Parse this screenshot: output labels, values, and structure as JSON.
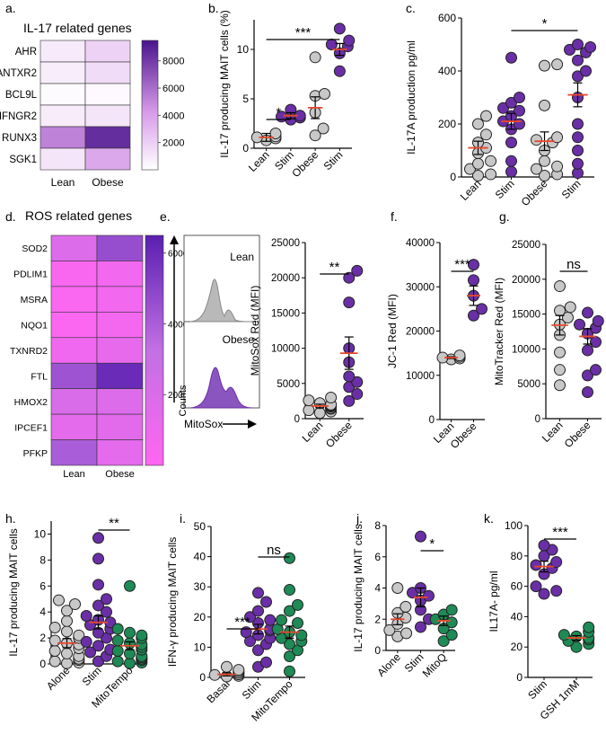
{
  "chart_data": [
    {
      "panel": "a.",
      "type": "heatmap",
      "title": "IL-17 related genes",
      "rows": [
        "AHR",
        "ANTXR2",
        "BCL9L",
        "IFNGR2",
        "RUNX3",
        "SGK1"
      ],
      "columns": [
        "Lean",
        "Obese"
      ],
      "values": [
        [
          900,
          1900
        ],
        [
          700,
          1500
        ],
        [
          150,
          250
        ],
        [
          800,
          1100
        ],
        [
          5200,
          8500
        ],
        [
          1100,
          3700
        ]
      ],
      "color_ticks": [
        "2000",
        "4000",
        "6000",
        "8000"
      ],
      "color_range": [
        0,
        9500
      ]
    },
    {
      "panel": "b.",
      "type": "scatter",
      "ylabel": "IL-17 producing MAIT cells (%)",
      "categories": [
        "Lean",
        "Stim",
        "Obese",
        "Stim"
      ],
      "ylim": [
        0,
        13
      ],
      "yticks": [
        "0",
        "5",
        "10"
      ],
      "points": [
        [
          1.0,
          1.5,
          0.8,
          1.2,
          1.1
        ],
        [
          3.1,
          3.3,
          3.2,
          2.9,
          3.9
        ],
        [
          5.3,
          5.5,
          2.0,
          1.3,
          9.2,
          3.6
        ],
        [
          12.1,
          10.5,
          10.3,
          10.9,
          9.6,
          7.8
        ]
      ],
      "colors": [
        "#c8c8c8",
        "#6a2fa6",
        "#c8c8c8",
        "#6a2fa6"
      ],
      "means": [
        1.1,
        3.3,
        4.1,
        10.0
      ],
      "sems": [
        0.4,
        0.3,
        1.1,
        0.6
      ],
      "significance": [
        {
          "from": 0,
          "to": 1,
          "label": "*"
        },
        {
          "from": 0,
          "to": 3,
          "label": "***"
        }
      ]
    },
    {
      "panel": "c.",
      "type": "scatter",
      "ylabel": "IL-17A production pg/ml",
      "categories": [
        "Lean",
        "Stim",
        "Obese",
        "Stim"
      ],
      "ylim": [
        0,
        600
      ],
      "yticks": [
        "0",
        "200",
        "400",
        "600"
      ],
      "points": [
        [
          230,
          200,
          160,
          130,
          110,
          90,
          60,
          50,
          30,
          10,
          5
        ],
        [
          450,
          300,
          280,
          260,
          250,
          230,
          210,
          200,
          180,
          130,
          60,
          20
        ],
        [
          425,
          420,
          270,
          150,
          140,
          130,
          100,
          60,
          30,
          10,
          5,
          40
        ],
        [
          500,
          490,
          480,
          470,
          440,
          400,
          380,
          300,
          200,
          150,
          100,
          50,
          15
        ]
      ],
      "colors": [
        "#c8c8c8",
        "#6a2fa6",
        "#c8c8c8",
        "#6a2fa6"
      ],
      "means": [
        110,
        210,
        135,
        310
      ],
      "sems": [
        25,
        30,
        35,
        45
      ],
      "significance": [
        {
          "from": 1,
          "to": 3,
          "label": "*"
        }
      ]
    },
    {
      "panel": "d.",
      "type": "heatmap",
      "title": "ROS related genes",
      "rows": [
        "SOD2",
        "PDLIM1",
        "MSRA",
        "NQO1",
        "TXNRD2",
        "FTL",
        "HMOX2",
        "IPCEF1",
        "PFKP"
      ],
      "columns": [
        "Lean",
        "Obese"
      ],
      "values": [
        [
          1800,
          4600
        ],
        [
          300,
          700
        ],
        [
          250,
          700
        ],
        [
          200,
          600
        ],
        [
          800,
          1300
        ],
        [
          4400,
          6000
        ],
        [
          2100,
          1800
        ],
        [
          1500,
          1600
        ],
        [
          4000,
          1500
        ]
      ],
      "color_ticks": [
        "2000",
        "4000",
        "6000"
      ],
      "color_range": [
        0,
        6500
      ]
    },
    {
      "panel": "e.",
      "type": "histogram",
      "labels": {
        "top": "Lean",
        "bottom": "Obese",
        "ylabel": "Counts",
        "xlabel": "MitoSox"
      }
    },
    {
      "panel": "e.",
      "type": "scatter",
      "ylabel": "MitoSox Red (MFI)",
      "categories": [
        "Lean",
        "Obese"
      ],
      "ylim": [
        0,
        25000
      ],
      "yticks": [
        "0",
        "5000",
        "10000",
        "15000",
        "20000",
        "25000"
      ],
      "points": [
        [
          3000,
          2600,
          2200,
          2000,
          1900,
          1700,
          1500,
          1400,
          1200,
          1000,
          800,
          1800
        ],
        [
          21000,
          20000,
          16500,
          10000,
          8000,
          6000,
          5200,
          4500,
          3500,
          2500
        ]
      ],
      "colors": [
        "#c8c8c8",
        "#6a2fa6"
      ],
      "means": [
        1800,
        9300
      ],
      "sems": [
        250,
        2300
      ],
      "significance": [
        {
          "from": 0,
          "to": 1,
          "label": "**"
        }
      ]
    },
    {
      "panel": "f.",
      "type": "scatter",
      "ylabel": "JC-1 Red (MFI)",
      "categories": [
        "Lean",
        "Obese"
      ],
      "ylim": [
        0,
        40000
      ],
      "yticks": [
        "0",
        "10000",
        "20000",
        "30000",
        "40000"
      ],
      "points": [
        [
          14500,
          14000,
          13800,
          14200,
          13600
        ],
        [
          35000,
          31500,
          28000,
          25000,
          23500
        ]
      ],
      "colors": [
        "#c8c8c8",
        "#6a2fa6"
      ],
      "means": [
        14000,
        28000
      ],
      "sems": [
        200,
        2200
      ],
      "significance": [
        {
          "from": 0,
          "to": 1,
          "label": "***"
        }
      ]
    },
    {
      "panel": "g.",
      "type": "scatter",
      "ylabel": "MitoTracker Red (MFI)",
      "categories": [
        "Lean",
        "Obese"
      ],
      "ylim": [
        0,
        25000
      ],
      "yticks": [
        "0",
        "5000",
        "10000",
        "15000",
        "20000",
        "25000"
      ],
      "points": [
        [
          19000,
          16000,
          15500,
          14500,
          13500,
          12000,
          9500,
          7000,
          4800
        ],
        [
          15200,
          14000,
          13500,
          13000,
          12200,
          11000,
          9800,
          7000,
          6200,
          3800
        ]
      ],
      "colors": [
        "#c8c8c8",
        "#6a2fa6"
      ],
      "means": [
        13400,
        11800
      ],
      "sems": [
        1400,
        1100
      ],
      "significance": [
        {
          "from": 0,
          "to": 1,
          "label": "ns"
        }
      ]
    },
    {
      "panel": "h.",
      "type": "scatter",
      "ylabel": "IL-17 producing MAIT cells",
      "categories": [
        "Alone",
        "Stim",
        "MitoTempo"
      ],
      "ylim": [
        0,
        11
      ],
      "yticks": [
        "0",
        "2",
        "4",
        "6",
        "8",
        "10"
      ],
      "points": [
        [
          4.9,
          4.6,
          4.1,
          3.3,
          2.8,
          2.5,
          2.2,
          2.0,
          1.8,
          1.6,
          1.5,
          1.2,
          1.0,
          0.8,
          0.6,
          0.4,
          0.3,
          0.2,
          0.1,
          0.05
        ],
        [
          9.7,
          8.1,
          6.1,
          5.0,
          4.5,
          4.0,
          3.7,
          3.4,
          3.2,
          3.0,
          2.7,
          2.4,
          2.0,
          1.7,
          1.4,
          1.1,
          0.9,
          0.6,
          0.2
        ],
        [
          6.0,
          2.7,
          2.4,
          2.2,
          2.0,
          1.8,
          1.6,
          1.5,
          1.3,
          1.1,
          1.0,
          0.8,
          0.6,
          0.5,
          0.4,
          0.3,
          0.2,
          0.1,
          0.05
        ]
      ],
      "colors": [
        "#c8c8c8",
        "#6a2fa6",
        "#1e8a55"
      ],
      "means": [
        1.6,
        3.2,
        1.4
      ],
      "sems": [
        0.35,
        0.5,
        0.3
      ],
      "significance": [
        {
          "from": 1,
          "to": 2,
          "label": "**"
        }
      ]
    },
    {
      "panel": "i.",
      "type": "scatter",
      "ylabel": "IFN-γ producing MAIT cells",
      "categories": [
        "Basal",
        "Stim",
        "MitoTempo"
      ],
      "ylim": [
        0,
        50
      ],
      "yticks": [
        "0",
        "10",
        "20",
        "30",
        "40",
        "50"
      ],
      "points": [
        [
          3.5,
          2.5,
          2.0,
          1.5,
          1.0,
          0.8,
          0.5,
          0.3
        ],
        [
          28,
          25,
          22,
          20,
          19,
          18,
          16,
          15.5,
          15,
          14,
          13,
          12,
          11,
          9,
          5,
          3.5
        ],
        [
          39.5,
          29,
          24,
          22,
          19,
          18,
          16,
          15,
          14,
          13,
          12,
          11,
          9,
          7,
          2
        ]
      ],
      "colors": [
        "#c8c8c8",
        "#6a2fa6",
        "#1e8a55"
      ],
      "means": [
        1.0,
        16.0,
        15.0
      ],
      "sems": [
        0.5,
        1.6,
        2.0
      ],
      "significance": [
        {
          "from": 0,
          "to": 1,
          "label": "***"
        },
        {
          "from": 1,
          "to": 2,
          "label": "ns"
        }
      ]
    },
    {
      "panel": "j.",
      "type": "scatter",
      "ylabel": "IL-17 producing MAIT cells",
      "categories": [
        "Alone",
        "Stim",
        "MitoQ"
      ],
      "ylim": [
        0,
        8
      ],
      "yticks": [
        "0",
        "2",
        "4",
        "6",
        "8"
      ],
      "points": [
        [
          4.0,
          2.8,
          2.4,
          2.1,
          1.7,
          1.3,
          1.1,
          0.9
        ],
        [
          7.3,
          4.0,
          3.7,
          3.5,
          3.2,
          2.6,
          2.0,
          1.5
        ],
        [
          2.6,
          2.3,
          2.0,
          1.8,
          1.4,
          1.0,
          0.6
        ]
      ],
      "colors": [
        "#c8c8c8",
        "#6a2fa6",
        "#1e8a55"
      ],
      "means": [
        2.0,
        3.4,
        1.9
      ],
      "sems": [
        0.35,
        0.6,
        0.3
      ],
      "significance": [
        {
          "from": 1,
          "to": 2,
          "label": "*"
        }
      ]
    },
    {
      "panel": "k.",
      "type": "scatter",
      "ylabel": "IL17A- pg/ml",
      "categories": [
        "Stim",
        "GSH 1mM"
      ],
      "ylim": [
        0,
        100
      ],
      "yticks": [
        "0",
        "20",
        "40",
        "60",
        "80",
        "100"
      ],
      "points": [
        [
          87,
          84,
          80,
          76,
          74,
          72,
          68,
          60,
          57,
          55
        ],
        [
          33,
          30,
          28,
          27,
          26,
          25,
          24,
          22,
          20
        ]
      ],
      "colors": [
        "#6a2fa6",
        "#1e8a55"
      ],
      "means": [
        73,
        26
      ],
      "sems": [
        3.5,
        1.5
      ],
      "significance": [
        {
          "from": 0,
          "to": 1,
          "label": "***"
        }
      ]
    }
  ]
}
